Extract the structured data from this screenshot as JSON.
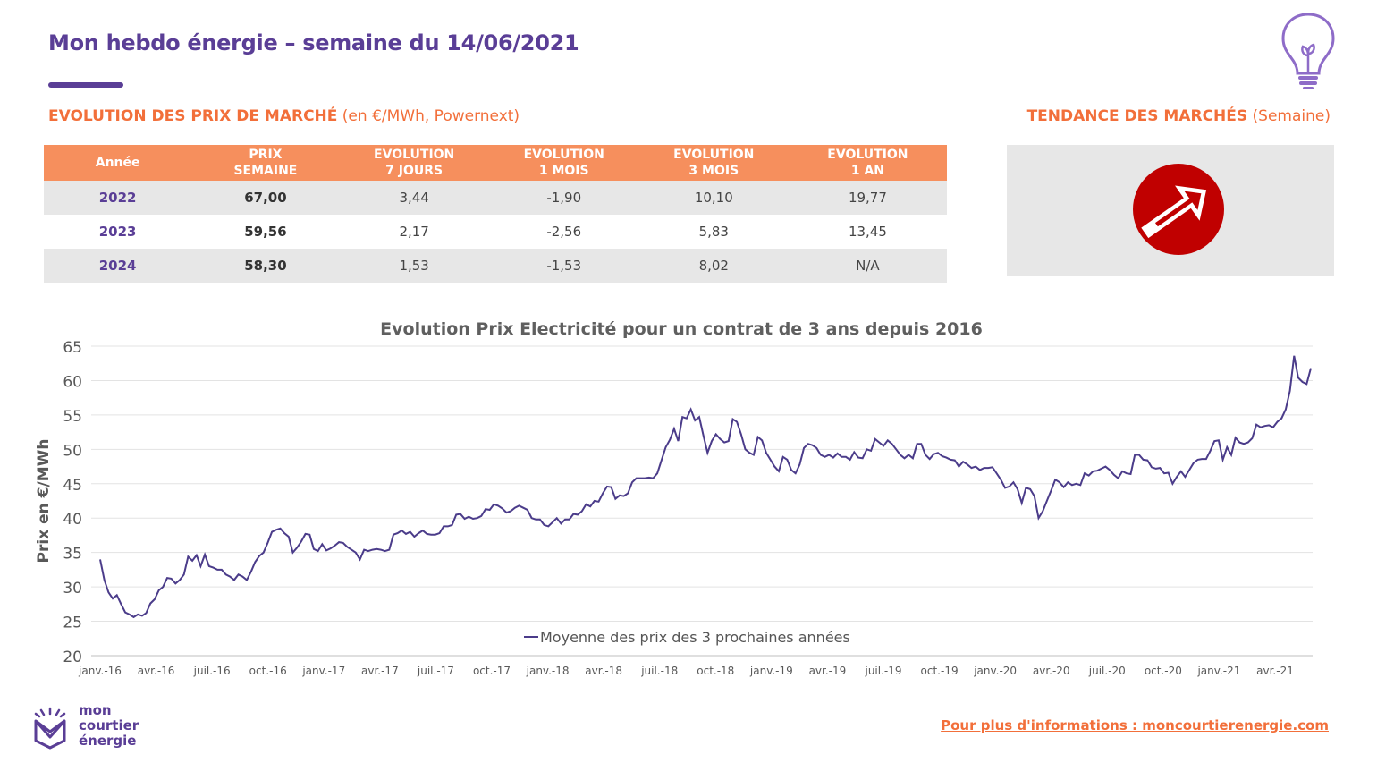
{
  "header": {
    "title": "Mon hebdo énergie – semaine du 14/06/2021"
  },
  "colors": {
    "brand": "#5a3e96",
    "accent": "#f26f3a",
    "table_header": "#f68f5d",
    "trend": "#c00000",
    "line": "#4b3c8a"
  },
  "icons": [
    "lightbulb-icon",
    "trend-up-arrow-icon",
    "logo-icon"
  ],
  "section_left": {
    "title": "EVOLUTION DES PRIX DE MARCHÉ",
    "subtitle": "(en €/MWh, Powernext)"
  },
  "section_right": {
    "title": "TENDANCE DES MARCHÉS",
    "subtitle": "(Semaine)"
  },
  "table": {
    "headers": [
      [
        "Année"
      ],
      [
        "PRIX",
        "SEMAINE"
      ],
      [
        "EVOLUTION",
        "7 JOURS"
      ],
      [
        "EVOLUTION",
        "1 MOIS"
      ],
      [
        "EVOLUTION",
        "3 MOIS"
      ],
      [
        "EVOLUTION",
        "1 AN"
      ]
    ],
    "rows": [
      [
        "2022",
        "67,00",
        "3,44",
        "-1,90",
        "10,10",
        "19,77"
      ],
      [
        "2023",
        "59,56",
        "2,17",
        "-2,56",
        "5,83",
        "13,45"
      ],
      [
        "2024",
        "58,30",
        "1,53",
        "-1,53",
        "8,02",
        "N/A"
      ]
    ]
  },
  "trend": "up",
  "chart_data": {
    "type": "line",
    "title": "Evolution Prix Electricité pour un contrat de 3 ans depuis 2016",
    "xlabel": "",
    "ylabel": "Prix en €/MWh",
    "ylim": [
      20,
      65
    ],
    "yticks": [
      20,
      25,
      30,
      35,
      40,
      45,
      50,
      55,
      60,
      65
    ],
    "grid": true,
    "legend": "bottom-center",
    "x_range": [
      "2016-01-04",
      "2021-06-14"
    ],
    "xtick_labels": [
      "janv.-16",
      "avr.-16",
      "juil.-16",
      "oct.-16",
      "janv.-17",
      "avr.-17",
      "juil.-17",
      "oct.-17",
      "janv.-18",
      "avr.-18",
      "juil.-18",
      "oct.-18",
      "janv.-19",
      "avr.-19",
      "juil.-19",
      "oct.-19",
      "janv.-20",
      "avr.-20",
      "juil.-20",
      "oct.-20",
      "janv.-21",
      "avr.-21"
    ],
    "series": [
      {
        "name": "Moyenne des prix des 3 prochaines années",
        "values": [
          34.0,
          31.0,
          29.2,
          28.3,
          28.8,
          27.5,
          26.3,
          26.0,
          25.6,
          26.0,
          25.8,
          26.2,
          27.6,
          28.2,
          29.5,
          30.0,
          31.3,
          31.2,
          30.5,
          31.0,
          31.8,
          34.4,
          33.8,
          34.6,
          33.0,
          34.7,
          33.0,
          32.8,
          32.5,
          32.5,
          31.8,
          31.5,
          31.0,
          31.8,
          31.5,
          31.0,
          32.2,
          33.6,
          34.5,
          35.0,
          36.4,
          38.0,
          38.3,
          38.5,
          37.8,
          37.3,
          35.0,
          35.7,
          36.6,
          37.7,
          37.6,
          35.5,
          35.2,
          36.2,
          35.3,
          35.6,
          36.0,
          36.5,
          36.4,
          35.8,
          35.4,
          35.0,
          34.0,
          35.4,
          35.2,
          35.4,
          35.5,
          35.4,
          35.2,
          35.4,
          37.6,
          37.8,
          38.2,
          37.7,
          38.0,
          37.3,
          37.8,
          38.2,
          37.7,
          37.6,
          37.6,
          37.8,
          38.8,
          38.8,
          39.0,
          40.5,
          40.6,
          39.9,
          40.2,
          39.9,
          40.0,
          40.3,
          41.3,
          41.2,
          42.0,
          41.8,
          41.4,
          40.8,
          41.0,
          41.5,
          41.8,
          41.5,
          41.2,
          40.0,
          39.8,
          39.8,
          39.0,
          38.8,
          39.4,
          40.0,
          39.2,
          39.8,
          39.8,
          40.6,
          40.5,
          41.0,
          42.0,
          41.7,
          42.5,
          42.4,
          43.6,
          44.6,
          44.5,
          42.8,
          43.3,
          43.2,
          43.6,
          45.2,
          45.8,
          45.8,
          45.8,
          45.9,
          45.8,
          46.5,
          48.4,
          50.3,
          51.4,
          53.0,
          51.2,
          54.7,
          54.5,
          55.8,
          54.2,
          54.7,
          52.0,
          49.5,
          51.2,
          52.2,
          51.5,
          51.0,
          51.2,
          54.4,
          54.0,
          52.2,
          50.0,
          49.5,
          49.2,
          51.8,
          51.3,
          49.5,
          48.5,
          47.5,
          46.8,
          48.9,
          48.5,
          47.0,
          46.5,
          47.8,
          50.2,
          50.8,
          50.6,
          50.2,
          49.2,
          48.9,
          49.2,
          48.8,
          49.4,
          48.9,
          48.9,
          48.5,
          49.6,
          48.8,
          48.7,
          50.0,
          49.8,
          51.5,
          51.0,
          50.5,
          51.3,
          50.8,
          50.0,
          49.2,
          48.7,
          49.2,
          48.7,
          50.8,
          50.8,
          49.2,
          48.6,
          49.3,
          49.5,
          49.0,
          48.8,
          48.5,
          48.4,
          47.5,
          48.2,
          47.8,
          47.3,
          47.5,
          47.0,
          47.3,
          47.3,
          47.4,
          46.5,
          45.6,
          44.4,
          44.6,
          45.2,
          44.2,
          42.2,
          44.4,
          44.2,
          43.2,
          40.0,
          41.0,
          42.5,
          44.0,
          45.6,
          45.2,
          44.5,
          45.2,
          44.8,
          45.0,
          44.8,
          46.5,
          46.2,
          46.8,
          46.9,
          47.2,
          47.5,
          47.0,
          46.3,
          45.8,
          46.8,
          46.5,
          46.4,
          49.2,
          49.2,
          48.5,
          48.4,
          47.4,
          47.2,
          47.3,
          46.5,
          46.6,
          45.0,
          46.0,
          46.8,
          46.0,
          47.0,
          48.0,
          48.5,
          48.6,
          48.6,
          49.8,
          51.2,
          51.3,
          48.5,
          50.3,
          49.2,
          51.7,
          51.0,
          50.8,
          51.0,
          51.6,
          53.6,
          53.2,
          53.4,
          53.5,
          53.2,
          54.0,
          54.5,
          55.8,
          58.5,
          63.6,
          60.4,
          59.8,
          59.5,
          61.8
        ]
      }
    ]
  },
  "branding": {
    "logo_lines": [
      "mon",
      "courtier",
      "énergie"
    ]
  },
  "footer": {
    "link_text": "Pour plus d'informations : moncourtierenergie.com"
  }
}
